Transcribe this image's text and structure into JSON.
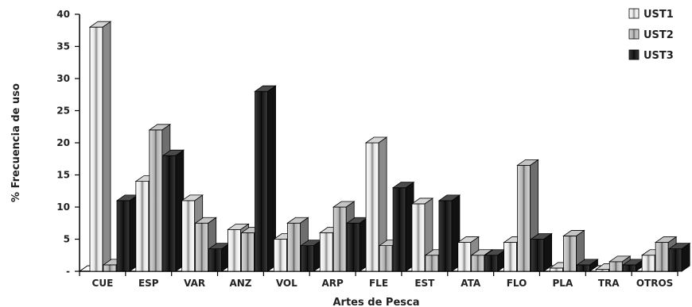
{
  "chart_data": {
    "type": "bar",
    "title": "",
    "xlabel": "Artes de Pesca",
    "ylabel": "% Frecuencia de uso",
    "categories": [
      "CUE",
      "ESP",
      "VAR",
      "ANZ",
      "VOL",
      "ARP",
      "FLE",
      "EST",
      "ATA",
      "FLO",
      "PLA",
      "TRA",
      "OTROS"
    ],
    "ylim": [
      0,
      40
    ],
    "yticks": [
      "-",
      "5",
      "10",
      "15",
      "20",
      "25",
      "30",
      "35",
      "40"
    ],
    "series": [
      {
        "name": "UST1",
        "values": [
          38,
          14,
          11,
          6.5,
          5,
          6,
          20,
          10.5,
          4.5,
          4.5,
          0.5,
          0.3,
          2.5
        ],
        "color": "#f2f2f2"
      },
      {
        "name": "UST2",
        "values": [
          1,
          22,
          7.5,
          6,
          7.5,
          10,
          4,
          2.5,
          2.5,
          16.5,
          5.5,
          1.5,
          4.5
        ],
        "color": "#a8a8a8"
      },
      {
        "name": "UST3",
        "values": [
          11,
          18,
          3.5,
          28,
          4,
          7.5,
          13,
          11,
          2.5,
          5,
          1,
          1,
          3.5
        ],
        "color": "#2e2e2e"
      }
    ],
    "grid": false,
    "legend_position": "top-right",
    "style": "3d-columns"
  }
}
